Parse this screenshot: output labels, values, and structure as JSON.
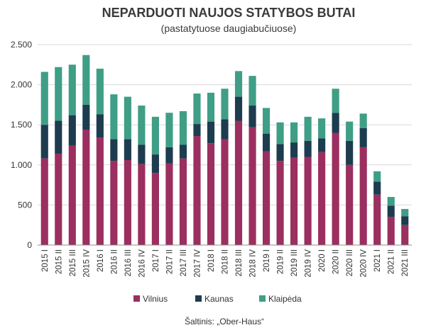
{
  "chart_data": {
    "type": "bar",
    "stacked": true,
    "title": "NEPARDUOTI NAUJOS STATYBOS BUTAI",
    "subtitle": "(pastatytuose daugiabučiuose)",
    "xlabel": "",
    "ylabel": "",
    "ylim": [
      0,
      2500
    ],
    "yticks": [
      0,
      500,
      1000,
      1500,
      2000,
      2500
    ],
    "ytick_labels": [
      "0",
      "500",
      "1.000",
      "1.500",
      "2.000",
      "2.500"
    ],
    "grid": true,
    "legend_position": "bottom",
    "categories": [
      "2015 I",
      "2015 II",
      "2015 III",
      "2015 IV",
      "2016 I",
      "2016 II",
      "2016 III",
      "2016 IV",
      "2017 I",
      "2017 II",
      "2017 III",
      "2017 IV",
      "2018 I",
      "2018 II",
      "2018 III",
      "2018 IV",
      "2019 I",
      "2019 II",
      "2019 III",
      "2019 IV",
      "2020 I",
      "2020 II",
      "2020 III",
      "2020 IV",
      "2021 I",
      "2021 II",
      "2021 III"
    ],
    "series": [
      {
        "name": "Vilnius",
        "color": "#9b2f5f",
        "values": [
          1080,
          1140,
          1240,
          1440,
          1340,
          1050,
          1060,
          1010,
          900,
          1020,
          1080,
          1360,
          1270,
          1320,
          1550,
          1470,
          1170,
          1050,
          1090,
          1100,
          1160,
          1400,
          1000,
          1220,
          630,
          350,
          250
        ]
      },
      {
        "name": "Kaunas",
        "color": "#1d3c4f",
        "values": [
          420,
          410,
          380,
          310,
          290,
          270,
          260,
          240,
          230,
          200,
          170,
          150,
          270,
          250,
          300,
          270,
          220,
          210,
          190,
          200,
          170,
          250,
          300,
          240,
          160,
          140,
          110
        ]
      },
      {
        "name": "Klaipėda",
        "color": "#3f9e86",
        "values": [
          660,
          670,
          630,
          620,
          570,
          560,
          530,
          490,
          470,
          430,
          420,
          380,
          360,
          380,
          320,
          370,
          320,
          270,
          250,
          300,
          250,
          300,
          240,
          180,
          130,
          110,
          90
        ]
      }
    ]
  },
  "source_text": "Šaltinis: „Ober-Haus“"
}
